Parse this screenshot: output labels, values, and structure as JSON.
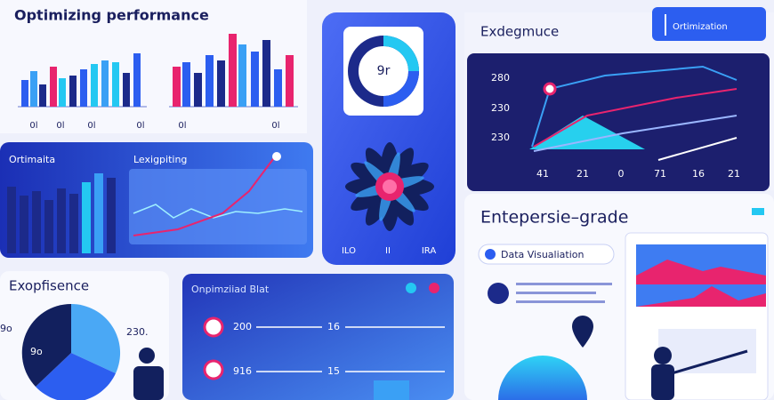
{
  "top_left": {
    "title": "Optimizing performance",
    "axis_labels": [
      "0l",
      "0l",
      "0l",
      "0l",
      "0l",
      "0l"
    ]
  },
  "gauge": {
    "label": "9r",
    "footer": [
      "ILO",
      "II",
      "IRA"
    ]
  },
  "top_right": {
    "title": "Exdegmuce",
    "badge": "Ortimization",
    "y_labels": [
      "280",
      "230",
      "230"
    ],
    "x_labels": [
      "41",
      "21",
      "0",
      "71",
      "16",
      "21"
    ]
  },
  "mid_left": {
    "title": "Ortimaita",
    "chart_title": "Lexigpiting"
  },
  "enterprise": {
    "title": "Entepersie–grade",
    "pill": "Data Visualiation"
  },
  "experience": {
    "title": "Exopfisence",
    "labels": [
      "9o",
      "230.",
      "9o"
    ]
  },
  "blat": {
    "title": "Onpimziiad Blat",
    "rows": [
      {
        "a": "200",
        "b": "16"
      },
      {
        "a": "916",
        "b": "15"
      }
    ]
  }
}
